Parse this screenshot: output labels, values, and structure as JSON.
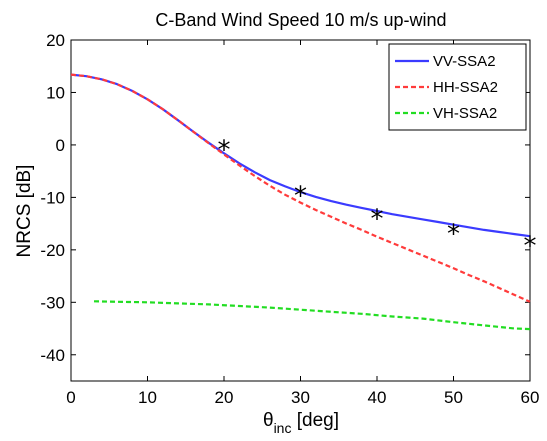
{
  "chart_data": {
    "type": "line",
    "title": "C-Band Wind Speed 10 m/s up-wind",
    "xlabel": {
      "base": "θ",
      "sub": "inc",
      "rest": " [deg]"
    },
    "ylabel": "NRCS [dB]",
    "xlim": [
      0,
      60
    ],
    "ylim": [
      -45,
      20
    ],
    "xticks": [
      0,
      10,
      20,
      30,
      40,
      50,
      60
    ],
    "yticks": [
      20,
      10,
      0,
      -10,
      -20,
      -30,
      -40
    ],
    "xtick_labels": [
      "0",
      "10",
      "20",
      "30",
      "40",
      "50",
      "60"
    ],
    "ytick_labels": [
      "20",
      "10",
      "0",
      "-10",
      "-20",
      "-30",
      "-40"
    ],
    "grid": false,
    "legend_position": "top-right",
    "series": [
      {
        "name": "VV-SSA2",
        "color": "#3b3bff",
        "style": "solid",
        "x": [
          0,
          2,
          4,
          6,
          8,
          10,
          12,
          14,
          16,
          18,
          20,
          22,
          24,
          26,
          28,
          30,
          32,
          34,
          36,
          38,
          40,
          42,
          44,
          46,
          48,
          50,
          52,
          54,
          56,
          58,
          60
        ],
        "y": [
          13.4,
          13.1,
          12.5,
          11.6,
          10.3,
          8.7,
          6.8,
          4.7,
          2.5,
          0.4,
          -1.6,
          -3.5,
          -5.2,
          -6.7,
          -7.9,
          -9.0,
          -9.9,
          -10.7,
          -11.4,
          -12.0,
          -12.6,
          -13.2,
          -13.7,
          -14.2,
          -14.7,
          -15.2,
          -15.7,
          -16.2,
          -16.6,
          -17.0,
          -17.4
        ]
      },
      {
        "name": "HH-SSA2",
        "color": "#ff3b3b",
        "style": "dashed",
        "x": [
          0,
          2,
          4,
          6,
          8,
          10,
          12,
          14,
          16,
          18,
          20,
          22,
          24,
          26,
          28,
          30,
          32,
          34,
          36,
          38,
          40,
          42,
          44,
          46,
          48,
          50,
          52,
          54,
          56,
          58,
          60
        ],
        "y": [
          13.4,
          13.1,
          12.5,
          11.6,
          10.3,
          8.7,
          6.8,
          4.7,
          2.5,
          0.3,
          -1.8,
          -3.9,
          -5.9,
          -7.8,
          -9.5,
          -11.0,
          -12.4,
          -13.7,
          -15.0,
          -16.2,
          -17.5,
          -18.7,
          -19.9,
          -21.1,
          -22.3,
          -23.5,
          -24.8,
          -26.0,
          -27.3,
          -28.6,
          -29.9
        ]
      },
      {
        "name": "VH-SSA2",
        "color": "#22dd22",
        "style": "dashed",
        "x": [
          3,
          6,
          10,
          14,
          18,
          22,
          26,
          30,
          34,
          38,
          42,
          46,
          50,
          54,
          58,
          60
        ],
        "y": [
          -29.8,
          -29.9,
          -30.0,
          -30.2,
          -30.4,
          -30.7,
          -31.0,
          -31.4,
          -31.8,
          -32.2,
          -32.7,
          -33.1,
          -33.8,
          -34.4,
          -35.0,
          -35.1
        ]
      }
    ],
    "markers": {
      "symbol": "*",
      "color": "#000000",
      "points": [
        {
          "x": 20,
          "y": -0.5
        },
        {
          "x": 30,
          "y": -9.3
        },
        {
          "x": 40,
          "y": -13.6
        },
        {
          "x": 50,
          "y": -16.5
        },
        {
          "x": 60,
          "y": -18.8
        }
      ]
    }
  }
}
